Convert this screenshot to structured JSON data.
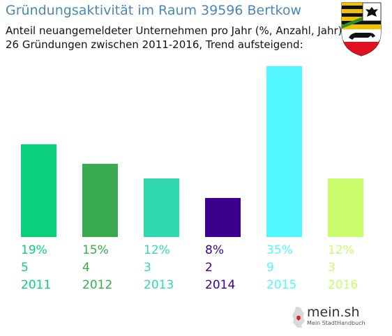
{
  "header": {
    "title": "Gründungsaktivität im Raum 39596 Bertkow",
    "subtitle_line1": "Anteil neuangemeldeter Unternehmen pro Jahr (%, Anzahl, Jahr)",
    "subtitle_line2": "26 Gründungen zwischen 2011-2016, Trend aufsteigend:"
  },
  "crest": {
    "icon": "saxony-anhalt-coat-of-arms-icon"
  },
  "brand": {
    "name": "mein.sh",
    "tagline": "Mein StadtHandbuch",
    "icon": "germany-map-icon"
  },
  "chart_data": {
    "type": "bar",
    "categories": [
      "2011",
      "2012",
      "2013",
      "2014",
      "2015",
      "2016"
    ],
    "values": [
      19,
      15,
      12,
      8,
      35,
      12
    ],
    "percent_labels": [
      "19%",
      "15%",
      "12%",
      "8%",
      "35%",
      "12%"
    ],
    "counts": [
      "5",
      "4",
      "3",
      "2",
      "9",
      "3"
    ],
    "colors": [
      "#0ad07e",
      "#3aaa4e",
      "#30d9ae",
      "#3c008f",
      "#52f6ff",
      "#c8fc6a"
    ],
    "ylim": [
      0,
      35
    ],
    "grid": false,
    "legend": "none"
  }
}
